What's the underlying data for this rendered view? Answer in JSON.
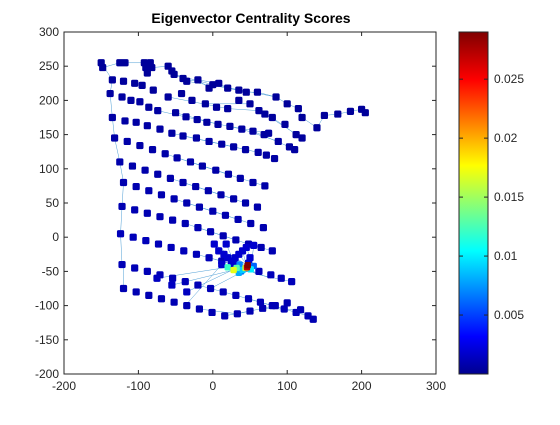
{
  "chart_data": {
    "type": "scatter",
    "title": "Eigenvector Centrality Scores",
    "xlim": [
      -200,
      300
    ],
    "ylim": [
      -200,
      300
    ],
    "xticks": [
      -200,
      -100,
      0,
      100,
      200,
      300
    ],
    "yticks": [
      -200,
      -150,
      -100,
      -50,
      0,
      50,
      100,
      150,
      200,
      250,
      300
    ],
    "grid": false,
    "colormap": "jet",
    "colorbar": {
      "lim": [
        0,
        0.029
      ],
      "ticks": [
        0.005,
        0.01,
        0.015,
        0.02,
        0.025
      ],
      "tick_labels": [
        "0.005",
        "0.01",
        "0.015",
        "0.02",
        "0.025"
      ]
    },
    "edge_color": "#4f9fd6",
    "series": [
      {
        "x": [
          -150,
          -148,
          -125,
          -118,
          -92,
          -90,
          -88,
          -84,
          -82,
          -60,
          -55,
          -52,
          -40,
          -35,
          -20,
          -5,
          0,
          8,
          20,
          35,
          45,
          60,
          85,
          100,
          115,
          120,
          140,
          150,
          168,
          185,
          200,
          205,
          -135,
          -120,
          -105,
          -95,
          -80,
          -60,
          -42,
          -28,
          -10,
          5,
          20,
          35,
          50,
          62,
          70,
          80,
          97,
          112,
          120,
          -138,
          -122,
          -110,
          -98,
          -86,
          -74,
          -50,
          -36,
          -21,
          -8,
          7,
          23,
          39,
          54,
          69,
          75,
          88,
          103,
          110,
          -135,
          -118,
          -103,
          -88,
          -71,
          -55,
          -40,
          -22,
          -5,
          12,
          28,
          44,
          61,
          72,
          83,
          -132,
          -115,
          -98,
          -81,
          -64,
          -48,
          -30,
          -14,
          4,
          21,
          37,
          54,
          70,
          -125,
          -108,
          -91,
          -74,
          -57,
          -40,
          -23,
          -6,
          11,
          28,
          44,
          60,
          -120,
          -103,
          -86,
          -69,
          -52,
          -35,
          -18,
          0,
          17,
          34,
          51,
          68,
          -122,
          -105,
          -88,
          -71,
          -54,
          -37,
          -20,
          -3,
          14,
          31,
          48,
          65,
          80,
          -124,
          -107,
          -90,
          -73,
          -56,
          -39,
          -22,
          -5,
          12,
          29,
          46,
          62,
          78,
          92,
          106,
          -122,
          -105,
          -88,
          -71,
          -54,
          -37,
          -20,
          -3,
          14,
          31,
          48,
          64,
          80,
          96,
          112,
          128,
          -120,
          -103,
          -86,
          -69,
          -52,
          -35,
          -18,
          -1,
          16,
          33,
          50,
          67,
          84,
          100,
          118,
          135,
          -75,
          -55,
          -35,
          2,
          8,
          15,
          20,
          25,
          30,
          35,
          40,
          45,
          50,
          12,
          28,
          48,
          18,
          55,
          40,
          44,
          47,
          35,
          36,
          51,
          20,
          28,
          32,
          38,
          55,
          46,
          47
        ],
        "y": [
          255,
          248,
          255,
          255,
          255,
          248,
          240,
          255,
          248,
          250,
          243,
          238,
          232,
          228,
          230,
          218,
          223,
          225,
          218,
          215,
          212,
          212,
          205,
          195,
          188,
          175,
          160,
          178,
          180,
          184,
          187,
          182,
          230,
          228,
          225,
          222,
          215,
          205,
          210,
          200,
          195,
          190,
          188,
          200,
          195,
          185,
          180,
          175,
          165,
          150,
          145,
          210,
          205,
          200,
          198,
          190,
          185,
          182,
          176,
          172,
          168,
          165,
          162,
          158,
          155,
          150,
          152,
          140,
          132,
          128,
          175,
          170,
          168,
          163,
          158,
          152,
          148,
          145,
          140,
          136,
          132,
          128,
          124,
          120,
          115,
          145,
          140,
          134,
          128,
          122,
          116,
          110,
          104,
          98,
          92,
          86,
          80,
          75,
          110,
          104,
          98,
          92,
          86,
          80,
          74,
          68,
          62,
          56,
          50,
          44,
          80,
          74,
          68,
          62,
          56,
          50,
          44,
          38,
          32,
          26,
          20,
          14,
          45,
          40,
          35,
          30,
          25,
          20,
          14,
          8,
          2,
          -4,
          -10,
          -15,
          -20,
          5,
          0,
          -5,
          -10,
          -15,
          -20,
          -25,
          -30,
          -35,
          -40,
          -45,
          -50,
          -55,
          -60,
          -65,
          -40,
          -45,
          -50,
          -55,
          -60,
          -65,
          -70,
          -75,
          -80,
          -85,
          -90,
          -95,
          -100,
          -105,
          -110,
          -115,
          -75,
          -80,
          -85,
          -90,
          -95,
          -100,
          -105,
          -110,
          -115,
          -112,
          -108,
          -104,
          -100,
          -96,
          -106,
          -120,
          -60,
          -70,
          -80,
          -10,
          -20,
          -25,
          -30,
          -35,
          -30,
          -25,
          -20,
          -15,
          -30,
          -40,
          -40,
          -38,
          -10,
          -12,
          -48,
          -45,
          -42,
          -52,
          -40,
          -47,
          -44,
          -48,
          -45,
          -50,
          -42,
          -44,
          -41
        ],
        "values": [
          0.0003,
          0.0003,
          0.0003,
          0.0003,
          0.0003,
          0.0003,
          0.0003,
          0.0003,
          0.0003,
          0.0003,
          0.0003,
          0.0003,
          0.0003,
          0.0003,
          0.0003,
          0.0003,
          0.0003,
          0.0003,
          0.0003,
          0.0003,
          0.0003,
          0.0003,
          0.0003,
          0.0003,
          0.0003,
          0.0003,
          0.0003,
          0.0003,
          0.0003,
          0.0003,
          0.0003,
          0.0003,
          0.0004,
          0.0004,
          0.0004,
          0.0004,
          0.0004,
          0.0004,
          0.0004,
          0.0004,
          0.0004,
          0.0004,
          0.0004,
          0.0004,
          0.0004,
          0.0004,
          0.0004,
          0.0004,
          0.0004,
          0.0004,
          0.0004,
          0.0005,
          0.0005,
          0.0005,
          0.0005,
          0.0005,
          0.0005,
          0.0005,
          0.0005,
          0.0005,
          0.0005,
          0.0005,
          0.0005,
          0.0005,
          0.0005,
          0.0005,
          0.0005,
          0.0005,
          0.0005,
          0.0005,
          0.0006,
          0.0006,
          0.0006,
          0.0006,
          0.0006,
          0.0006,
          0.0006,
          0.0006,
          0.0006,
          0.0006,
          0.0006,
          0.0006,
          0.0006,
          0.0006,
          0.0006,
          0.0007,
          0.0007,
          0.0007,
          0.0007,
          0.0007,
          0.0007,
          0.0007,
          0.0007,
          0.0007,
          0.0007,
          0.0007,
          0.0007,
          0.0007,
          0.0008,
          0.0008,
          0.0008,
          0.0008,
          0.0008,
          0.0008,
          0.0008,
          0.0008,
          0.0008,
          0.0008,
          0.0008,
          0.0008,
          0.0009,
          0.0009,
          0.0009,
          0.0009,
          0.0009,
          0.0009,
          0.0009,
          0.0009,
          0.0009,
          0.0009,
          0.0009,
          0.0009,
          0.001,
          0.001,
          0.001,
          0.001,
          0.001,
          0.001,
          0.001,
          0.001,
          0.001,
          0.001,
          0.001,
          0.001,
          0.001,
          0.0012,
          0.0012,
          0.0012,
          0.0012,
          0.0012,
          0.0012,
          0.0012,
          0.0012,
          0.0012,
          0.0012,
          0.0012,
          0.0012,
          0.0012,
          0.0012,
          0.0012,
          0.0011,
          0.0011,
          0.0011,
          0.0011,
          0.0011,
          0.0011,
          0.0011,
          0.0011,
          0.0011,
          0.0011,
          0.0011,
          0.0011,
          0.0011,
          0.0011,
          0.0011,
          0.0011,
          0.001,
          0.001,
          0.001,
          0.001,
          0.001,
          0.001,
          0.001,
          0.001,
          0.001,
          0.001,
          0.001,
          0.001,
          0.001,
          0.001,
          0.001,
          0.001,
          0.0014,
          0.0014,
          0.0014,
          0.0018,
          0.0018,
          0.0018,
          0.0018,
          0.0018,
          0.0018,
          0.0018,
          0.0018,
          0.0018,
          0.0018,
          0.0018,
          0.0018,
          0.0018,
          0.0018,
          0.0018,
          0.009,
          0.016,
          0.011,
          0.008,
          0.007,
          0.01,
          0.012,
          0.017,
          0.013,
          0.006,
          0.006,
          0.027,
          0.029
        ]
      }
    ],
    "edges": [
      [
        -150,
        255,
        -148,
        248
      ],
      [
        -148,
        248,
        -125,
        255
      ],
      [
        -125,
        255,
        -118,
        255
      ],
      [
        -118,
        255,
        -92,
        255
      ],
      [
        -92,
        255,
        -90,
        248
      ],
      [
        -90,
        248,
        -88,
        240
      ],
      [
        -84,
        255,
        -82,
        248
      ],
      [
        -82,
        248,
        -60,
        250
      ],
      [
        -60,
        250,
        -55,
        243
      ],
      [
        -55,
        243,
        -52,
        238
      ],
      [
        -52,
        238,
        -40,
        232
      ],
      [
        -40,
        232,
        -35,
        228
      ],
      [
        -35,
        228,
        -20,
        230
      ],
      [
        -20,
        230,
        -5,
        218
      ],
      [
        -5,
        218,
        0,
        223
      ],
      [
        0,
        223,
        8,
        225
      ],
      [
        8,
        225,
        20,
        218
      ],
      [
        20,
        218,
        35,
        215
      ],
      [
        35,
        215,
        45,
        212
      ],
      [
        45,
        212,
        60,
        212
      ],
      [
        60,
        212,
        85,
        205
      ],
      [
        85,
        205,
        100,
        195
      ],
      [
        100,
        195,
        115,
        188
      ],
      [
        115,
        188,
        120,
        175
      ],
      [
        120,
        175,
        140,
        160
      ],
      [
        140,
        160,
        150,
        178
      ],
      [
        150,
        178,
        168,
        180
      ],
      [
        168,
        180,
        185,
        184
      ],
      [
        185,
        184,
        200,
        187
      ],
      [
        200,
        187,
        205,
        182
      ],
      [
        -52,
        238,
        0,
        223
      ],
      [
        20,
        218,
        45,
        212
      ],
      [
        -20,
        230,
        8,
        225
      ],
      [
        -35,
        228,
        20,
        218
      ],
      [
        0,
        223,
        85,
        205
      ],
      [
        -60,
        205,
        20,
        188
      ],
      [
        20,
        188,
        62,
        185
      ],
      [
        -10,
        195,
        50,
        195
      ],
      [
        70,
        180,
        120,
        145
      ],
      [
        80,
        175,
        112,
        150
      ],
      [
        -74,
        185,
        -21,
        172
      ],
      [
        -21,
        172,
        39,
        158
      ],
      [
        39,
        158,
        88,
        140
      ],
      [
        -50,
        182,
        7,
        165
      ],
      [
        54,
        155,
        103,
        132
      ],
      [
        23,
        162,
        75,
        152
      ],
      [
        -55,
        152,
        12,
        136
      ],
      [
        12,
        136,
        61,
        124
      ],
      [
        -5,
        140,
        44,
        128
      ],
      [
        -40,
        148,
        28,
        132
      ],
      [
        -64,
        122,
        -14,
        104
      ],
      [
        -14,
        104,
        37,
        86
      ],
      [
        37,
        86,
        70,
        75
      ],
      [
        -30,
        110,
        21,
        92
      ],
      [
        -48,
        116,
        4,
        98
      ],
      [
        -57,
        86,
        -6,
        68
      ],
      [
        -6,
        68,
        44,
        50
      ],
      [
        -23,
        74,
        28,
        56
      ],
      [
        -40,
        80,
        11,
        62
      ],
      [
        -52,
        56,
        0,
        38
      ],
      [
        0,
        38,
        51,
        20
      ],
      [
        -18,
        44,
        34,
        26
      ],
      [
        -35,
        50,
        17,
        32
      ],
      [
        -37,
        20,
        14,
        2
      ],
      [
        14,
        2,
        48,
        -10
      ],
      [
        -20,
        14,
        31,
        -4
      ],
      [
        48,
        -10,
        80,
        -20
      ],
      [
        -22,
        -25,
        29,
        -40
      ],
      [
        29,
        -40,
        62,
        -55
      ],
      [
        -5,
        -30,
        46,
        -45
      ],
      [
        12,
        -35,
        78,
        -60
      ],
      [
        62,
        -55,
        106,
        -65
      ],
      [
        -20,
        -70,
        31,
        -85
      ],
      [
        31,
        -85,
        80,
        -100
      ],
      [
        48,
        -90,
        96,
        -105
      ],
      [
        64,
        -95,
        128,
        -115
      ],
      [
        -3,
        -75,
        46,
        -47
      ],
      [
        -18,
        -105,
        33,
        -112
      ],
      [
        33,
        -112,
        84,
        -100
      ],
      [
        67,
        -104,
        118,
        -106
      ],
      [
        118,
        -106,
        135,
        -120
      ],
      [
        16,
        -115,
        50,
        -108
      ],
      [
        2,
        -10,
        46,
        -44
      ],
      [
        8,
        -20,
        47,
        -41
      ],
      [
        15,
        -25,
        40,
        -48
      ],
      [
        20,
        -30,
        44,
        -45
      ],
      [
        25,
        -35,
        36,
        -52
      ],
      [
        30,
        -30,
        47,
        -41
      ],
      [
        35,
        -25,
        51,
        -47
      ],
      [
        40,
        -20,
        46,
        -44
      ],
      [
        45,
        -15,
        55,
        -42
      ],
      [
        50,
        -30,
        38,
        -50
      ],
      [
        12,
        -40,
        28,
        -44
      ],
      [
        28,
        -40,
        46,
        -44
      ],
      [
        48,
        -38,
        47,
        -41
      ],
      [
        18,
        -10,
        35,
        -52
      ],
      [
        55,
        -12,
        51,
        -47
      ],
      [
        -75,
        -60,
        20,
        -44
      ],
      [
        -55,
        -70,
        28,
        -48
      ],
      [
        -35,
        -80,
        32,
        -45
      ],
      [
        60,
        -55,
        47,
        -41
      ],
      [
        -37,
        -100,
        12,
        -40
      ],
      [
        -120,
        -75,
        -120,
        -40
      ],
      [
        -122,
        -40,
        -124,
        5
      ],
      [
        -124,
        5,
        -122,
        45
      ],
      [
        -122,
        45,
        -120,
        80
      ],
      [
        -120,
        80,
        -125,
        110
      ],
      [
        -125,
        110,
        -132,
        145
      ],
      [
        -132,
        145,
        -135,
        175
      ],
      [
        -135,
        175,
        -138,
        210
      ],
      [
        -138,
        210,
        -135,
        230
      ],
      [
        -135,
        230,
        -150,
        255
      ]
    ]
  }
}
